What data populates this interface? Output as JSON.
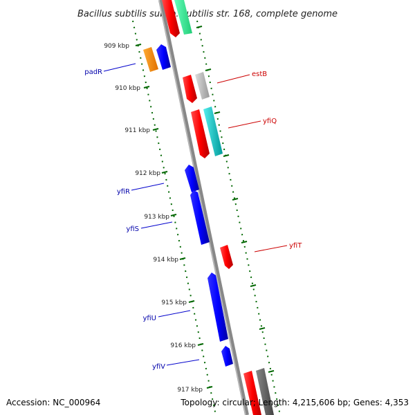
{
  "title": "Bacillus subtilis subsp. subtilis str. 168, complete genome",
  "footer": {
    "accession": "Accession: NC_000964",
    "topology": "Topology: circular; Length: 4,215,606 bp; Genes: 4,353"
  },
  "ticks": [
    {
      "label": "909 kbp"
    },
    {
      "label": "910 kbp"
    },
    {
      "label": "911 kbp"
    },
    {
      "label": "912 kbp"
    },
    {
      "label": "913 kbp"
    },
    {
      "label": "914 kbp"
    },
    {
      "label": "915 kbp"
    },
    {
      "label": "916 kbp"
    },
    {
      "label": "917 kbp"
    }
  ],
  "gene_labels": {
    "left": [
      "padR",
      "yfiR",
      "yfiS",
      "yfiU",
      "yfiV"
    ],
    "right": [
      "estB",
      "yfiQ",
      "yfiT"
    ]
  },
  "colors": {
    "forward_cds": "#ff0000",
    "reverse_cds": "#0000ff",
    "backbone": "#808080",
    "tick": "#006600",
    "orange": "#ff8c00",
    "teal": "#00cccc",
    "green_mint": "#33ee99",
    "gray_light": "#bbbbbb",
    "gray_dark": "#666666"
  }
}
